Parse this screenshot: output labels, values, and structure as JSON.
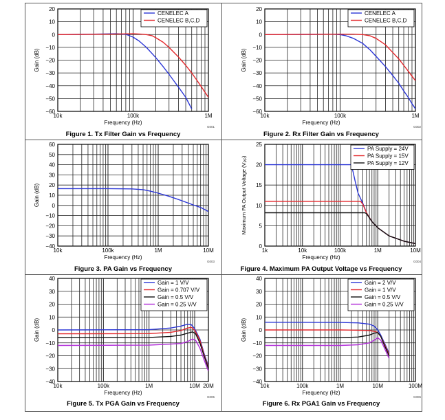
{
  "figures": [
    {
      "caption": "Figure 1. Tx Filter Gain vs Frequency",
      "code": "G001",
      "legend_labels": [
        "CENELEC A",
        "CENELEC B,C,D"
      ]
    },
    {
      "caption": "Figure 2. Rx Filter Gain vs Frequency",
      "code": "G002",
      "legend_labels": [
        "CENELEC A",
        "CENELEC B,C,D"
      ]
    },
    {
      "caption": "Figure 3. PA Gain vs Frequency",
      "code": "G003",
      "legend_labels": []
    },
    {
      "caption": "Figure 4. Maximum PA Output Voltage vs Frequency",
      "code": "G004",
      "legend_labels": [
        "PA Supply = 24V",
        "PA Supply = 15V",
        "PA Supply = 12V"
      ]
    },
    {
      "caption": "Figure 5. Tx PGA Gain vs Frequency",
      "code": "G005",
      "legend_labels": [
        "Gain = 1 V/V",
        "Gain = 0.707 V/V",
        "Gain = 0.5 V/V",
        "Gain = 0.25 V/V"
      ]
    },
    {
      "caption": "Figure 6. Rx PGA1 Gain vs Frequency",
      "code": "G006",
      "legend_labels": [
        "Gain = 2 V/V",
        "Gain = 1 V/V",
        "Gain = 0.5 V/V",
        "Gain = 0.25 V/V"
      ]
    }
  ],
  "colors": {
    "blue": "#2b36d6",
    "red": "#e3262a",
    "black": "#111111",
    "purple": "#b02ad8",
    "grid": "#222222",
    "frame": "#555555"
  },
  "chart_data": [
    {
      "type": "line",
      "title": "Figure 1. Tx Filter Gain vs Frequency",
      "xlabel": "Frequency (Hz)",
      "ylabel": "Gain (dB)",
      "xscale": "log",
      "xlim": [
        10000,
        1000000
      ],
      "ylim": [
        -60,
        20
      ],
      "x_ticks": [
        10000,
        100000,
        1000000
      ],
      "x_tick_labels": [
        "10k",
        "100k",
        "1M"
      ],
      "y_ticks": [
        -60,
        -50,
        -40,
        -30,
        -20,
        -10,
        0,
        10,
        20
      ],
      "y_tick_labels": [
        "−60",
        "−50",
        "−40",
        "−30",
        "−20",
        "−10",
        "0",
        "10",
        "20"
      ],
      "grid": true,
      "legend_position": "top-right",
      "series": [
        {
          "name": "CENELEC A",
          "color": "blue",
          "x": [
            10000,
            30000,
            60000,
            80000,
            100000,
            120000,
            150000,
            200000,
            250000,
            300000,
            400000,
            500000,
            600000
          ],
          "y": [
            0,
            0.3,
            0.6,
            0.2,
            -2,
            -5,
            -10,
            -18,
            -25,
            -31,
            -41,
            -49,
            -58
          ]
        },
        {
          "name": "CENELEC B,C,D",
          "color": "red",
          "x": [
            10000,
            50000,
            100000,
            130000,
            150000,
            180000,
            200000,
            250000,
            300000,
            400000,
            500000,
            600000,
            700000,
            800000,
            900000,
            1000000
          ],
          "y": [
            0,
            0.3,
            0.6,
            0.3,
            0,
            -1,
            -2.5,
            -6,
            -10,
            -17.5,
            -24,
            -30,
            -35.5,
            -40.5,
            -45,
            -49
          ]
        }
      ]
    },
    {
      "type": "line",
      "title": "Figure 2. Rx Filter Gain vs Frequency",
      "xlabel": "Frequency (Hz)",
      "ylabel": "Gain (dB)",
      "xscale": "log",
      "xlim": [
        10000,
        1000000
      ],
      "ylim": [
        -60,
        20
      ],
      "x_ticks": [
        10000,
        100000,
        1000000
      ],
      "x_tick_labels": [
        "10k",
        "100k",
        "1M"
      ],
      "y_ticks": [
        -60,
        -50,
        -40,
        -30,
        -20,
        -10,
        0,
        10,
        20
      ],
      "y_tick_labels": [
        "−60",
        "−50",
        "−40",
        "−30",
        "−20",
        "−10",
        "0",
        "10",
        "20"
      ],
      "grid": true,
      "legend_position": "top-right",
      "series": [
        {
          "name": "CENELEC A",
          "color": "blue",
          "x": [
            10000,
            50000,
            80000,
            100000,
            120000,
            150000,
            200000,
            250000,
            300000,
            400000,
            500000,
            600000,
            700000,
            800000,
            900000,
            1000000
          ],
          "y": [
            0,
            0.2,
            0.3,
            0,
            -1,
            -3,
            -7,
            -12,
            -17,
            -25,
            -32,
            -38,
            -44,
            -49,
            -54,
            -58
          ]
        },
        {
          "name": "CENELEC B,C,D",
          "color": "red",
          "x": [
            10000,
            100000,
            150000,
            200000,
            250000,
            300000,
            400000,
            500000,
            600000,
            700000,
            800000,
            900000,
            1000000
          ],
          "y": [
            0,
            0.3,
            0.3,
            0,
            -1,
            -3,
            -8,
            -14,
            -19,
            -24,
            -28.5,
            -32.5,
            -36
          ]
        }
      ]
    },
    {
      "type": "line",
      "title": "Figure 3. PA Gain vs Frequency",
      "xlabel": "Frequency (Hz)",
      "ylabel": "Gain (dB)",
      "xscale": "log",
      "xlim": [
        10000,
        10000000
      ],
      "ylim": [
        -40,
        60
      ],
      "x_ticks": [
        10000,
        100000,
        1000000,
        10000000
      ],
      "x_tick_labels": [
        "10k",
        "100k",
        "1M",
        "10M"
      ],
      "y_ticks": [
        -40,
        -30,
        -20,
        -10,
        0,
        10,
        20,
        30,
        40,
        50,
        60
      ],
      "y_tick_labels": [
        "−40",
        "−30",
        "−20",
        "−10",
        "0",
        "10",
        "20",
        "30",
        "40",
        "50",
        "60"
      ],
      "grid": true,
      "series": [
        {
          "name": "",
          "color": "blue",
          "x": [
            10000,
            100000,
            300000,
            500000,
            700000,
            1000000,
            1500000,
            2000000,
            3000000,
            5000000,
            7000000,
            10000000
          ],
          "y": [
            16.5,
            16.5,
            16.2,
            15.5,
            14,
            12,
            9.5,
            7.5,
            4.5,
            0.5,
            -2,
            -6
          ]
        }
      ]
    },
    {
      "type": "line",
      "title": "Figure 4. Maximum PA Output Voltage vs Frequency",
      "xlabel": "Frequency (Hz)",
      "ylabel": "Maximum PA Output Voltage (Vpp)",
      "xscale": "log",
      "xlim": [
        1000,
        10000000
      ],
      "ylim": [
        0,
        25
      ],
      "x_ticks": [
        1000,
        10000,
        100000,
        1000000,
        10000000
      ],
      "x_tick_labels": [
        "1k",
        "10k",
        "100k",
        "1M",
        "10M"
      ],
      "y_ticks": [
        0,
        5,
        10,
        15,
        20,
        25
      ],
      "y_tick_labels": [
        "0",
        "5",
        "10",
        "15",
        "20",
        "25"
      ],
      "grid": true,
      "legend_position": "top-right",
      "series": [
        {
          "name": "PA Supply = 24V",
          "color": "blue",
          "x": [
            1000,
            200000,
            250000,
            300000,
            400000,
            500000,
            700000,
            1000000,
            2000000,
            5000000,
            10000000
          ],
          "y": [
            20,
            20,
            16,
            13,
            10.5,
            8.2,
            6,
            4.5,
            2.5,
            1.2,
            0.6
          ]
        },
        {
          "name": "PA Supply = 15V",
          "color": "red",
          "x": [
            1000,
            350000,
            400000,
            500000,
            700000,
            1000000,
            2000000,
            5000000,
            10000000
          ],
          "y": [
            11,
            11,
            10.3,
            8.2,
            6,
            4.5,
            2.5,
            1.2,
            0.6
          ]
        },
        {
          "name": "PA Supply = 12V",
          "color": "black",
          "x": [
            1000,
            450000,
            500000,
            700000,
            1000000,
            2000000,
            5000000,
            10000000
          ],
          "y": [
            8.2,
            8.2,
            8,
            6,
            4.5,
            2.5,
            1.2,
            0.6
          ]
        }
      ]
    },
    {
      "type": "line",
      "title": "Figure 5. Tx PGA Gain vs Frequency",
      "xlabel": "Frequency (Hz)",
      "ylabel": "Gain (dB)",
      "xscale": "log",
      "xlim": [
        10000,
        20000000
      ],
      "ylim": [
        -40,
        40
      ],
      "x_ticks": [
        10000,
        100000,
        1000000,
        10000000,
        20000000
      ],
      "x_tick_labels": [
        "10k",
        "100k",
        "1M",
        "10M",
        "20M"
      ],
      "y_ticks": [
        -40,
        -30,
        -20,
        -10,
        0,
        10,
        20,
        30,
        40
      ],
      "y_tick_labels": [
        "−40",
        "−30",
        "−20",
        "−10",
        "0",
        "10",
        "20",
        "30",
        "40"
      ],
      "grid": true,
      "legend_position": "top-right",
      "series": [
        {
          "name": "Gain = 1 V/V",
          "color": "blue",
          "x": [
            10000,
            1000000,
            3000000,
            5000000,
            7000000,
            8500000,
            10000000,
            13000000,
            16000000,
            20000000
          ],
          "y": [
            0,
            0.2,
            1.5,
            3,
            4.5,
            4,
            1,
            -7,
            -18,
            -28
          ]
        },
        {
          "name": "Gain = 0.707 V/V",
          "color": "red",
          "x": [
            10000,
            1000000,
            3000000,
            5000000,
            7000000,
            8500000,
            10000000,
            13000000,
            16000000,
            20000000
          ],
          "y": [
            -3,
            -2.8,
            -1.8,
            -0.5,
            1.5,
            2,
            0,
            -8,
            -19,
            -29
          ]
        },
        {
          "name": "Gain = 0.5 V/V",
          "color": "black",
          "x": [
            10000,
            1000000,
            3000000,
            5000000,
            7000000,
            9000000,
            10500000,
            13000000,
            16000000,
            20000000
          ],
          "y": [
            -6,
            -5.8,
            -5,
            -4,
            -2.5,
            -1.5,
            -3,
            -10,
            -20,
            -30
          ]
        },
        {
          "name": "Gain = 0.25 V/V",
          "color": "purple",
          "x": [
            10000,
            1000000,
            3000000,
            5000000,
            7000000,
            9000000,
            10500000,
            13000000,
            16000000,
            20000000
          ],
          "y": [
            -12,
            -11.8,
            -11,
            -10.5,
            -9,
            -7,
            -8,
            -14,
            -23,
            -32
          ]
        }
      ]
    },
    {
      "type": "line",
      "title": "Figure 6. Rx PGA1 Gain vs Frequency",
      "xlabel": "Frequency (Hz)",
      "ylabel": "Gain (dB)",
      "xscale": "log",
      "xlim": [
        10000,
        100000000
      ],
      "ylim": [
        -40,
        40
      ],
      "x_ticks": [
        10000,
        100000,
        1000000,
        10000000,
        100000000
      ],
      "x_tick_labels": [
        "10k",
        "100k",
        "1M",
        "10M",
        "100M"
      ],
      "y_ticks": [
        -40,
        -30,
        -20,
        -10,
        0,
        10,
        20,
        30,
        40
      ],
      "y_tick_labels": [
        "−40",
        "−30",
        "−20",
        "−10",
        "0",
        "10",
        "20",
        "30",
        "40"
      ],
      "grid": true,
      "legend_position": "top-right",
      "series": [
        {
          "name": "Gain = 2 V/V",
          "color": "blue",
          "x": [
            10000,
            1000000,
            3000000,
            6000000,
            8000000,
            10000000,
            12000000,
            15000000,
            20000000
          ],
          "y": [
            6,
            5.8,
            5.5,
            4.5,
            3,
            0,
            -4,
            -10,
            -18
          ]
        },
        {
          "name": "Gain = 1 V/V",
          "color": "red",
          "x": [
            10000,
            1000000,
            3000000,
            6000000,
            8000000,
            10000000,
            12000000,
            15000000,
            20000000
          ],
          "y": [
            0,
            0,
            -0.2,
            -0.5,
            -1,
            -2,
            -5,
            -11,
            -19
          ]
        },
        {
          "name": "Gain = 0.5 V/V",
          "color": "black",
          "x": [
            10000,
            1000000,
            3000000,
            6000000,
            8000000,
            10000000,
            12000000,
            15000000,
            20000000
          ],
          "y": [
            -6,
            -6,
            -5.5,
            -4,
            -2.5,
            -2,
            -5,
            -12,
            -20
          ]
        },
        {
          "name": "Gain = 0.25 V/V",
          "color": "purple",
          "x": [
            10000,
            1000000,
            3000000,
            6000000,
            8000000,
            10000000,
            12000000,
            15000000,
            20000000
          ],
          "y": [
            -12,
            -12,
            -11.5,
            -10,
            -8,
            -6,
            -8,
            -14,
            -22
          ]
        }
      ]
    }
  ]
}
